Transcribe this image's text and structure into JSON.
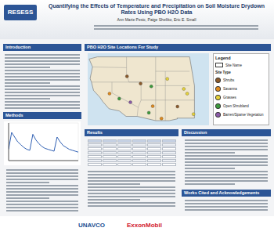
{
  "header": {
    "logo": "RESESS",
    "title": "Quantifying the Effects of Temperature and Precipitation on Soil Moisture Drydown Rates Using PBO H2O Data",
    "authors": "Ann Marie Pesic, Paige Shellito, Eric E. Small"
  },
  "sections": {
    "introduction": "Introduction",
    "methods": "Methods",
    "map": "PBO H2O Site Locations For Study",
    "results": "Results",
    "discussion": "Discussion",
    "works_cited": "Works Cited and Acknowledgements"
  },
  "map": {
    "legend": {
      "title": "Legend",
      "site_name": "Site Name",
      "site_type": "Site Type",
      "types": [
        {
          "name": "Shrubs",
          "color": "#8b5a2b"
        },
        {
          "name": "Savanna",
          "color": "#e08a1e"
        },
        {
          "name": "Grasses",
          "color": "#e6d23a"
        },
        {
          "name": "Open Shrubland",
          "color": "#3c9a3c"
        },
        {
          "name": "Barren/Sparse Vegetation",
          "color": "#8a5aa8"
        }
      ]
    },
    "sites": [
      {
        "lon": -105.2,
        "lat": 40.1,
        "type": "Grasses"
      },
      {
        "lon": -104.5,
        "lat": 38.8,
        "type": "Grasses"
      },
      {
        "lon": -106.5,
        "lat": 35.2,
        "type": "Shrubs"
      },
      {
        "lon": -111.6,
        "lat": 35.3,
        "type": "Savanna"
      },
      {
        "lon": -112.4,
        "lat": 33.5,
        "type": "Open Shrubland"
      },
      {
        "lon": -116.2,
        "lat": 36.4,
        "type": "Barren/Sparse Vegetation"
      },
      {
        "lon": -118.5,
        "lat": 37.4,
        "type": "Open Shrubland"
      },
      {
        "lon": -120.5,
        "lat": 38.8,
        "type": "Savanna"
      },
      {
        "lon": -114.1,
        "lat": 41.6,
        "type": "Shrubs"
      },
      {
        "lon": -111.9,
        "lat": 40.8,
        "type": "Open Shrubland"
      },
      {
        "lon": -108.6,
        "lat": 42.9,
        "type": "Grasses"
      },
      {
        "lon": -116.9,
        "lat": 43.6,
        "type": "Shrubs"
      },
      {
        "lon": -103.2,
        "lat": 33.1,
        "type": "Grasses"
      },
      {
        "lon": -109.8,
        "lat": 31.9,
        "type": "Savanna"
      }
    ]
  },
  "logos": [
    "UNAVCO",
    "ExxonMobil"
  ],
  "chart_data": {
    "type": "line",
    "x": [
      0,
      1,
      2,
      3,
      4,
      5,
      6,
      7,
      8,
      9,
      10,
      11,
      12,
      13,
      14,
      15,
      16,
      17,
      18,
      19,
      20,
      21,
      22,
      23
    ],
    "values": [
      0.12,
      0.3,
      0.25,
      0.2,
      0.17,
      0.14,
      0.12,
      0.11,
      0.28,
      0.22,
      0.18,
      0.15,
      0.13,
      0.12,
      0.11,
      0.1,
      0.25,
      0.2,
      0.16,
      0.14,
      0.12,
      0.11,
      0.1,
      0.09
    ],
    "color": "#2f5fb3",
    "xlim": [
      0,
      23
    ],
    "xticks": [
      0,
      6,
      12,
      18
    ],
    "ylim": [
      0,
      0.4
    ],
    "yticks": [
      0,
      0.1,
      0.2,
      0.3,
      0.4
    ],
    "grid": true,
    "tick_labels": false
  }
}
